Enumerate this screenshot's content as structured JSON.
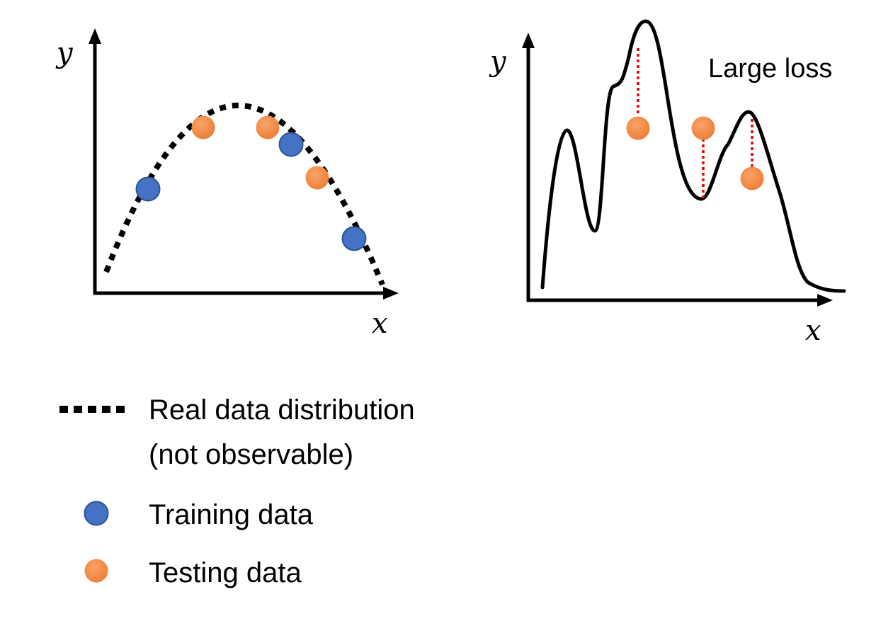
{
  "left_plot": {
    "y_label": "y",
    "x_label": "x"
  },
  "right_plot": {
    "y_label": "y",
    "x_label": "x",
    "annotation": "Large loss"
  },
  "legend": {
    "real_line1": "Real data distribution",
    "real_line2": "(not observable)",
    "training": "Training data",
    "testing": "Testing data"
  },
  "colors": {
    "training": "#4472c4",
    "training_stroke": "#2f528f",
    "testing": "#ed7d31",
    "loss_line": "#e80000"
  }
}
